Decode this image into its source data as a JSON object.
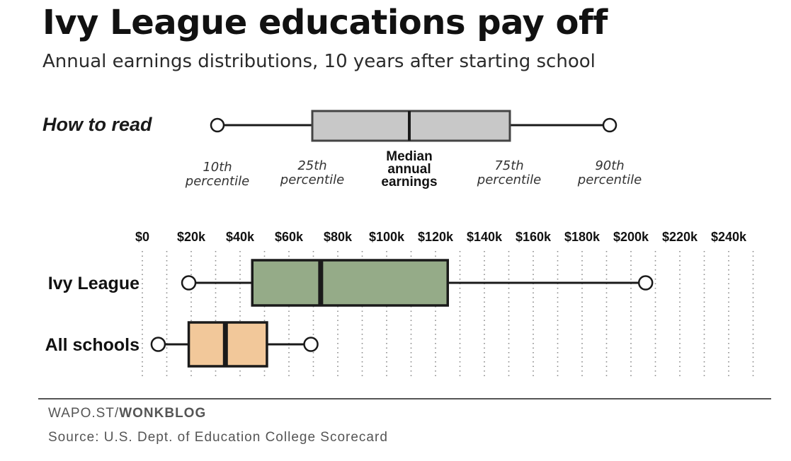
{
  "title": "Ivy League educations pay off",
  "subtitle": "Annual earnings distributions, 10 years after starting school",
  "how_to_read": {
    "label": "How to read",
    "p10_label": [
      "10th",
      "percentile"
    ],
    "p25_label": [
      "25th",
      "percentile"
    ],
    "median_label": [
      "Median",
      "annual",
      "earnings"
    ],
    "p75_label": [
      "75th",
      "percentile"
    ],
    "p90_label": [
      "90th",
      "percentile"
    ],
    "box_color": "#c8c8c8"
  },
  "footer": {
    "credit_prefix": "WAPO.ST/",
    "credit_bold": "WONKBLOG",
    "source": "Source: U.S. Dept. of Education College Scorecard"
  },
  "colors": {
    "ivy_box": "#95ab88",
    "all_box": "#f2c89a",
    "stroke": "#1a1a1a",
    "gridline": "#888888"
  },
  "chart_data": {
    "type": "boxplot",
    "x_ticks": [
      "$0",
      "$20k",
      "$40k",
      "$60k",
      "$80k",
      "$100k",
      "$120k",
      "$140k",
      "$160k",
      "$180k",
      "$200k",
      "$220k",
      "$240k"
    ],
    "x_tick_values": [
      0,
      20000,
      40000,
      60000,
      80000,
      100000,
      120000,
      140000,
      160000,
      180000,
      200000,
      220000,
      240000
    ],
    "xlim": [
      0,
      250000
    ],
    "grid": true,
    "series": [
      {
        "name": "Ivy League",
        "p10": 19000,
        "p25": 45000,
        "median": 73000,
        "p75": 125000,
        "p90": 206000,
        "color": "#95ab88"
      },
      {
        "name": "All schools",
        "p10": 6500,
        "p25": 19000,
        "median": 34000,
        "p75": 51000,
        "p90": 69000,
        "color": "#f2c89a"
      }
    ]
  }
}
